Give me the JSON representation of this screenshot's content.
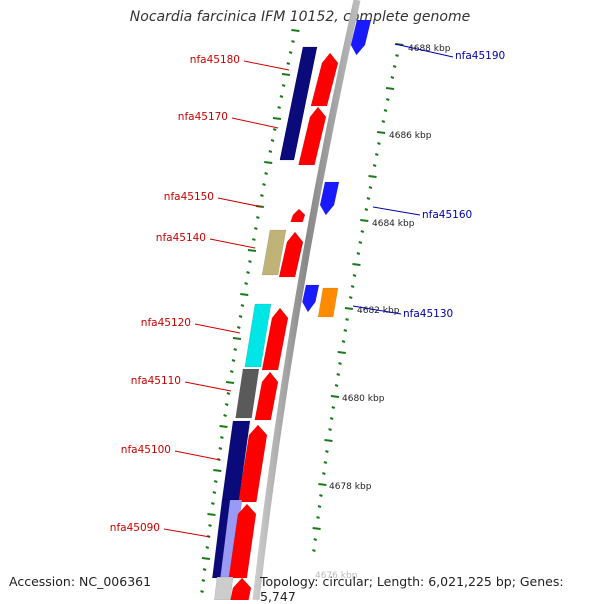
{
  "title": "Nocardia farcinica IFM 10152, complete genome",
  "footer": {
    "accession": "Accession: NC_006361",
    "summary": "Topology: circular; Length: 6,021,225 bp; Genes: 5,747"
  },
  "colors": {
    "backbone_dark": "#888888",
    "backbone_light": "#cccccc",
    "tick": "#1a7a1a",
    "label_forward": "#cc0000",
    "label_reverse": "#0000aa",
    "cds_red": "#ff0000",
    "blue": "#1a1aff",
    "navy": "#0a0a7a",
    "khaki": "#bfb377",
    "cyan": "#00e5e5",
    "gray": "#5a5a5a",
    "orange": "#ff8c00",
    "lavender": "#9a9af5",
    "light_gray": "#cccccc"
  },
  "scale_labels": [
    "4688 kbp",
    "4686 kbp",
    "4684 kbp",
    "4682 kbp",
    "4680 kbp",
    "4678 kbp",
    "4676 kbp"
  ],
  "forward_labels": [
    "nfa45180",
    "nfa45170",
    "nfa45150",
    "nfa45140",
    "nfa45120",
    "nfa45110",
    "nfa45100",
    "nfa45090"
  ],
  "reverse_labels": [
    "nfa45190",
    "nfa45160",
    "nfa45130"
  ],
  "features": [
    {
      "color": "navy"
    },
    {
      "color": "cds_red"
    },
    {
      "color": "navy"
    },
    {
      "color": "cds_red"
    },
    {
      "color": "cds_red"
    },
    {
      "color": "khaki"
    },
    {
      "color": "cds_red"
    },
    {
      "color": "cyan"
    },
    {
      "color": "cds_red"
    },
    {
      "color": "gray"
    },
    {
      "color": "cds_red"
    },
    {
      "color": "navy"
    },
    {
      "color": "cds_red"
    },
    {
      "color": "navy"
    },
    {
      "color": "lavender"
    },
    {
      "color": "cds_red"
    },
    {
      "color": "light_gray"
    },
    {
      "color": "cds_red"
    },
    {
      "color": "blue"
    },
    {
      "color": "blue"
    },
    {
      "color": "blue"
    },
    {
      "color": "orange"
    }
  ]
}
